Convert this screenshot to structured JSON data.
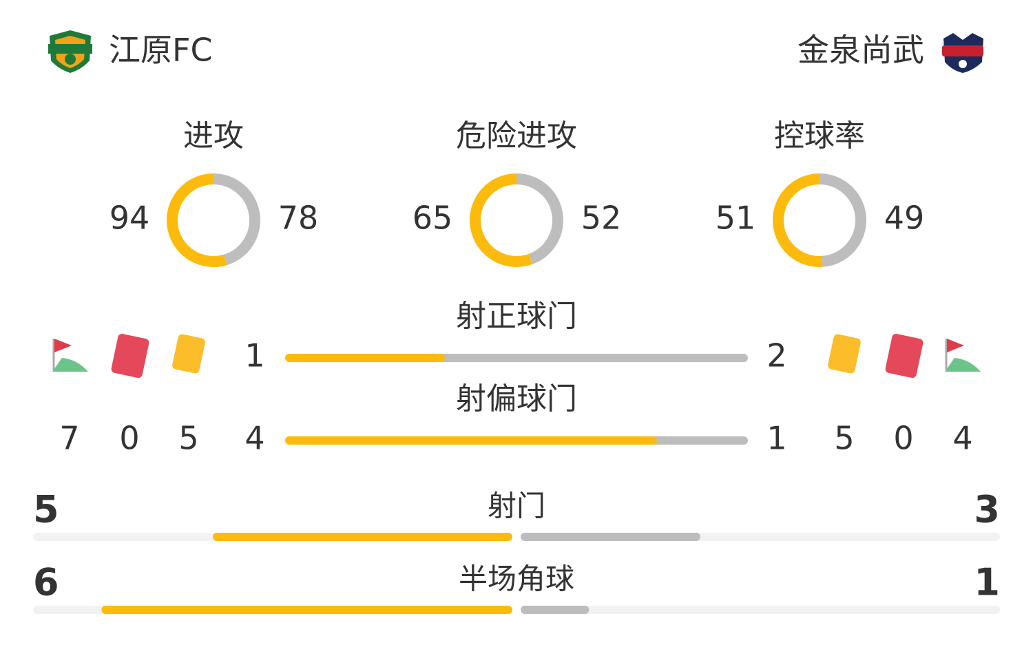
{
  "home": {
    "name": "江原FC"
  },
  "away": {
    "name": "金泉尚武"
  },
  "rings": [
    {
      "label": "进攻",
      "home": 94,
      "away": 78
    },
    {
      "label": "危险进攻",
      "home": 65,
      "away": 52
    },
    {
      "label": "控球率",
      "home": 51,
      "away": 49
    }
  ],
  "bars": [
    {
      "label": "射正球门",
      "home": 1,
      "away": 2
    },
    {
      "label": "射偏球门",
      "home": 4,
      "away": 1
    }
  ],
  "events": {
    "home": {
      "corners": 7,
      "red_cards": 0,
      "yellow_cards": 5
    },
    "away": {
      "yellow_cards": 5,
      "red_cards": 0,
      "corners": 4
    }
  },
  "split_bars": [
    {
      "label": "射门",
      "home": 5,
      "away": 3
    },
    {
      "label": "半场角球",
      "home": 6,
      "away": 1
    }
  ]
}
